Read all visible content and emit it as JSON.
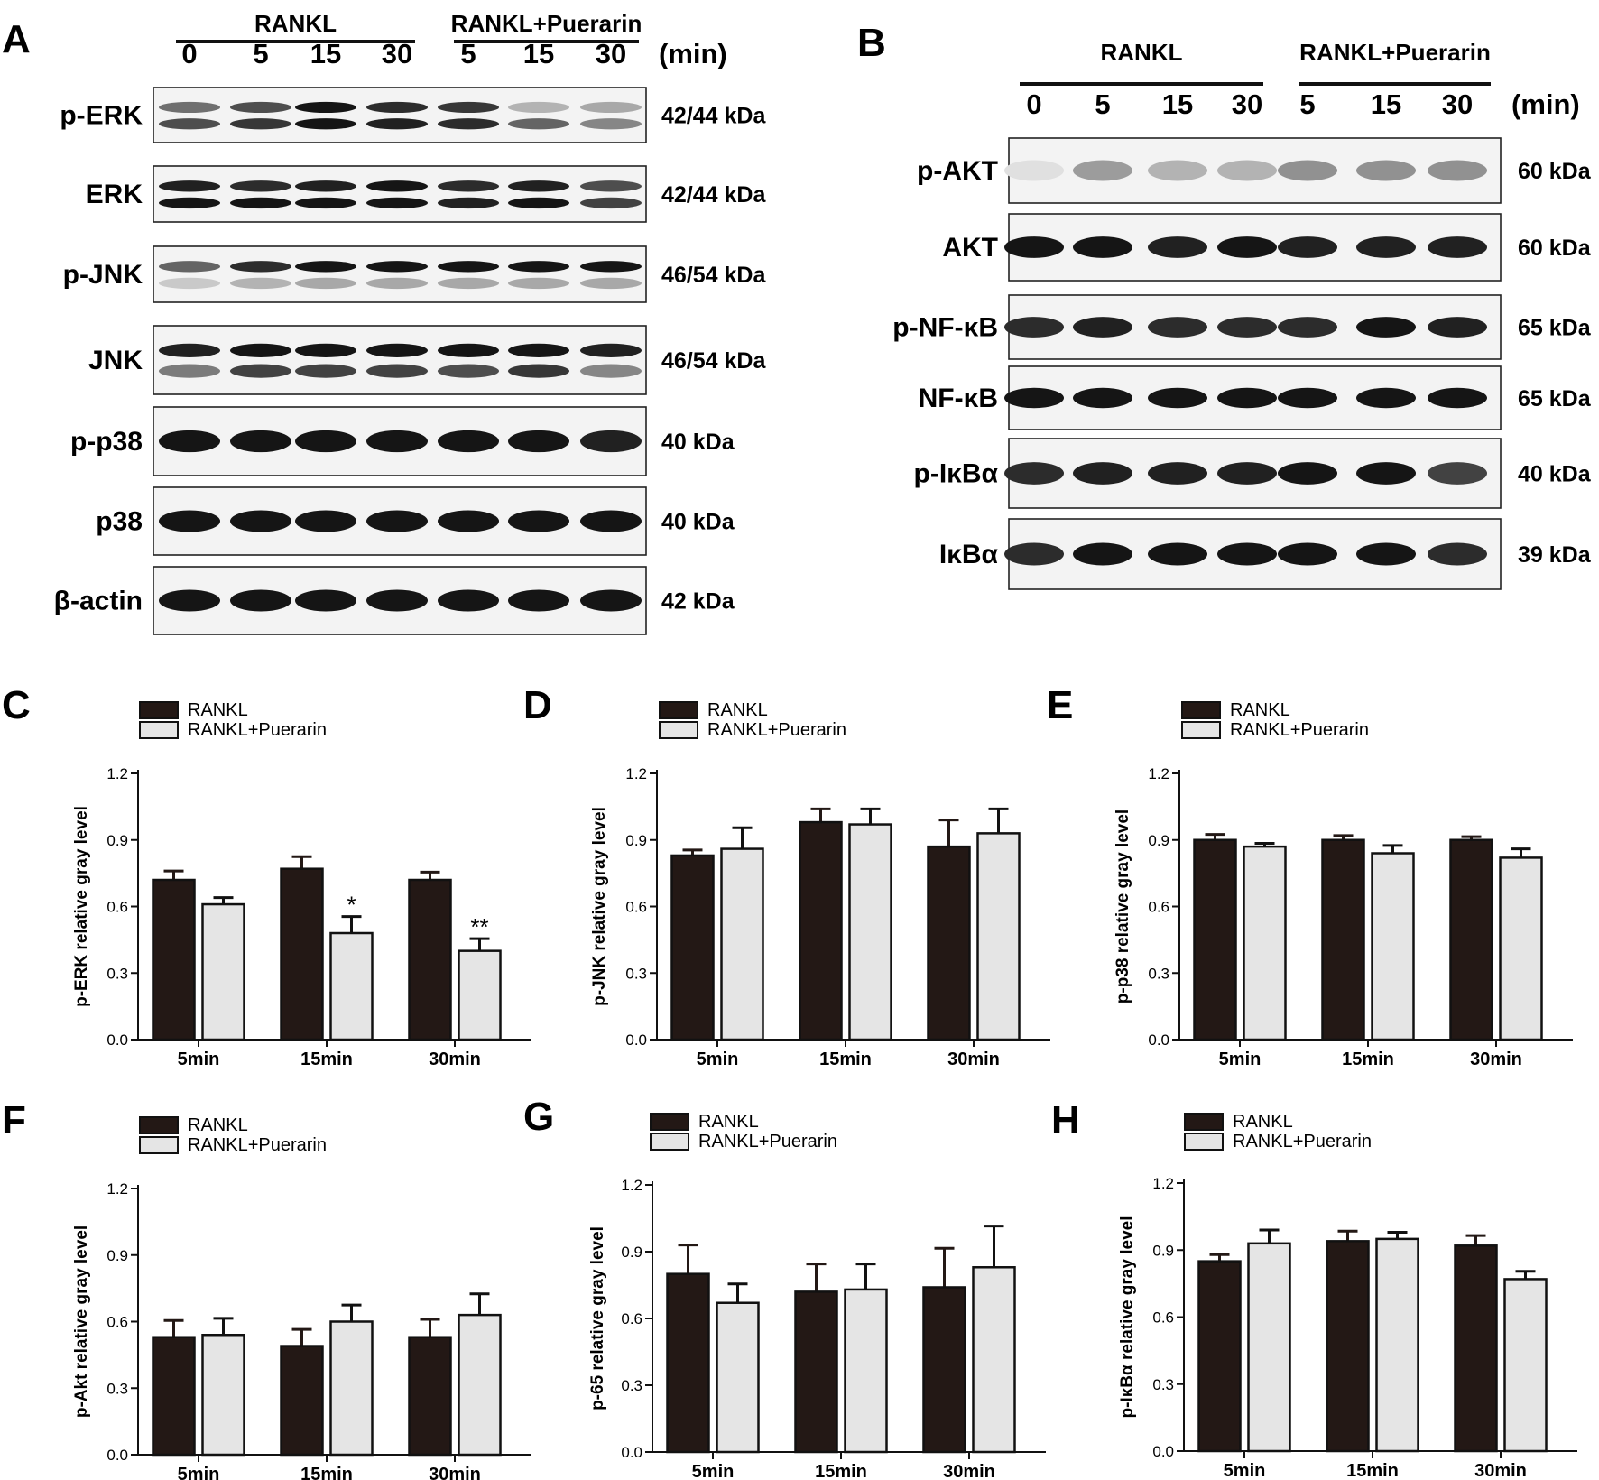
{
  "blots": [
    {
      "label": "A",
      "group_labels": [
        "RANKL",
        "RANKL+Puerarin"
      ],
      "timepoints": [
        "0",
        "5",
        "15",
        "30",
        "5",
        "15",
        "30"
      ],
      "unit": "(min)",
      "rows": [
        {
          "name": "p-ERK",
          "kda": "42/44 kDa",
          "bands": [
            [
              0.55,
              0.7,
              0.95,
              0.85,
              0.8,
              0.25,
              0.3
            ],
            [
              0.7,
              0.8,
              0.95,
              0.9,
              0.85,
              0.6,
              0.45
            ]
          ]
        },
        {
          "name": "ERK",
          "kda": "42/44 kDa",
          "bands": [
            [
              0.9,
              0.85,
              0.9,
              0.95,
              0.85,
              0.9,
              0.7
            ],
            [
              0.95,
              0.95,
              0.95,
              0.95,
              0.9,
              0.95,
              0.75
            ]
          ]
        },
        {
          "name": "p-JNK",
          "kda": "46/54 kDa",
          "bands": [
            [
              0.6,
              0.85,
              0.95,
              0.95,
              0.95,
              0.95,
              0.95
            ],
            [
              0.15,
              0.25,
              0.3,
              0.3,
              0.3,
              0.3,
              0.3
            ]
          ]
        },
        {
          "name": "JNK",
          "kda": "46/54 kDa",
          "bands": [
            [
              0.9,
              0.95,
              0.95,
              0.95,
              0.95,
              0.95,
              0.9
            ],
            [
              0.5,
              0.75,
              0.75,
              0.75,
              0.7,
              0.8,
              0.45
            ]
          ]
        },
        {
          "name": "p-p38",
          "kda": "40 kDa",
          "bands": [
            [
              0.95,
              0.95,
              0.95,
              0.95,
              0.95,
              0.95,
              0.9
            ]
          ]
        },
        {
          "name": "p38",
          "kda": "40 kDa",
          "bands": [
            [
              0.95,
              0.95,
              0.95,
              0.95,
              0.95,
              0.95,
              0.95
            ]
          ]
        },
        {
          "name": "β-actin",
          "kda": "42 kDa",
          "bands": [
            [
              0.95,
              0.95,
              0.95,
              0.95,
              0.95,
              0.95,
              0.95
            ]
          ]
        }
      ]
    },
    {
      "label": "B",
      "group_labels": [
        "RANKL",
        "RANKL+Puerarin"
      ],
      "timepoints": [
        "0",
        "5",
        "15",
        "30",
        "5",
        "15",
        "30"
      ],
      "unit": "(min)",
      "rows": [
        {
          "name": "p-AKT",
          "kda": "60 kDa",
          "bands": [
            [
              0.05,
              0.35,
              0.25,
              0.25,
              0.4,
              0.4,
              0.4
            ]
          ]
        },
        {
          "name": "AKT",
          "kda": "60 kDa",
          "bands": [
            [
              0.95,
              0.95,
              0.9,
              0.95,
              0.9,
              0.9,
              0.9
            ]
          ]
        },
        {
          "name": "p-NF-κB",
          "kda": "65 kDa",
          "bands": [
            [
              0.85,
              0.9,
              0.85,
              0.85,
              0.85,
              0.95,
              0.9
            ]
          ]
        },
        {
          "name": "NF-κB",
          "kda": "65 kDa",
          "bands": [
            [
              0.95,
              0.95,
              0.95,
              0.95,
              0.95,
              0.95,
              0.95
            ]
          ]
        },
        {
          "name": "p-IκBα",
          "kda": "40 kDa",
          "bands": [
            [
              0.85,
              0.9,
              0.9,
              0.9,
              0.95,
              0.95,
              0.75
            ]
          ]
        },
        {
          "name": "IκBα",
          "kda": "39 kDa",
          "bands": [
            [
              0.85,
              0.95,
              0.95,
              0.95,
              0.95,
              0.95,
              0.85
            ]
          ]
        }
      ]
    }
  ],
  "chart_data": [
    {
      "panel": "C",
      "type": "bar",
      "ylabel": "p-ERK relative gray level",
      "categories": [
        "5min",
        "15min",
        "30min"
      ],
      "yticks": [
        "0.0",
        "0.3",
        "0.6",
        "0.9",
        "1.2"
      ],
      "ylim": [
        0,
        1.2
      ],
      "series": [
        {
          "name": "RANKL",
          "color": "#231815",
          "values": [
            0.72,
            0.77,
            0.72
          ],
          "errors": [
            0.04,
            0.055,
            0.035
          ],
          "sig": [
            "",
            "",
            ""
          ]
        },
        {
          "name": "RANKL+Puerarin",
          "color": "#e5e5e5",
          "values": [
            0.61,
            0.48,
            0.4
          ],
          "errors": [
            0.03,
            0.075,
            0.055
          ],
          "sig": [
            "",
            "*",
            "**"
          ]
        }
      ]
    },
    {
      "panel": "D",
      "type": "bar",
      "ylabel": "p-JNK relative gray level",
      "categories": [
        "5min",
        "15min",
        "30min"
      ],
      "yticks": [
        "0.0",
        "0.3",
        "0.6",
        "0.9",
        "1.2"
      ],
      "ylim": [
        0,
        1.2
      ],
      "series": [
        {
          "name": "RANKL",
          "color": "#231815",
          "values": [
            0.83,
            0.98,
            0.87
          ],
          "errors": [
            0.025,
            0.06,
            0.12
          ],
          "sig": [
            "",
            "",
            ""
          ]
        },
        {
          "name": "RANKL+Puerarin",
          "color": "#e5e5e5",
          "values": [
            0.86,
            0.97,
            0.93
          ],
          "errors": [
            0.095,
            0.07,
            0.11
          ],
          "sig": [
            "",
            "",
            ""
          ]
        }
      ]
    },
    {
      "panel": "E",
      "type": "bar",
      "ylabel": "p-p38 relative gray level",
      "categories": [
        "5min",
        "15min",
        "30min"
      ],
      "yticks": [
        "0.0",
        "0.3",
        "0.6",
        "0.9",
        "1.2"
      ],
      "ylim": [
        0,
        1.2
      ],
      "series": [
        {
          "name": "RANKL",
          "color": "#231815",
          "values": [
            0.9,
            0.9,
            0.9
          ],
          "errors": [
            0.025,
            0.02,
            0.015
          ],
          "sig": [
            "",
            "",
            ""
          ]
        },
        {
          "name": "RANKL+Puerarin",
          "color": "#e5e5e5",
          "values": [
            0.87,
            0.84,
            0.82
          ],
          "errors": [
            0.015,
            0.035,
            0.04
          ],
          "sig": [
            "",
            "",
            ""
          ]
        }
      ]
    },
    {
      "panel": "F",
      "type": "bar",
      "ylabel": "p-Akt relative gray level",
      "categories": [
        "5min",
        "15min",
        "30min"
      ],
      "yticks": [
        "0.0",
        "0.3",
        "0.6",
        "0.9",
        "1.2"
      ],
      "ylim": [
        0,
        1.2
      ],
      "series": [
        {
          "name": "RANKL",
          "color": "#231815",
          "values": [
            0.53,
            0.49,
            0.53
          ],
          "errors": [
            0.075,
            0.075,
            0.08
          ],
          "sig": [
            "",
            "",
            ""
          ]
        },
        {
          "name": "RANKL+Puerarin",
          "color": "#e5e5e5",
          "values": [
            0.54,
            0.6,
            0.63
          ],
          "errors": [
            0.075,
            0.075,
            0.095
          ],
          "sig": [
            "",
            "",
            ""
          ]
        }
      ]
    },
    {
      "panel": "G",
      "type": "bar",
      "ylabel": "p-65 relative gray level",
      "categories": [
        "5min",
        "15min",
        "30min"
      ],
      "yticks": [
        "0.0",
        "0.3",
        "0.6",
        "0.9",
        "1.2"
      ],
      "ylim": [
        0,
        1.2
      ],
      "series": [
        {
          "name": "RANKL",
          "color": "#231815",
          "values": [
            0.8,
            0.72,
            0.74
          ],
          "errors": [
            0.13,
            0.125,
            0.175
          ],
          "sig": [
            "",
            "",
            ""
          ]
        },
        {
          "name": "RANKL+Puerarin",
          "color": "#e5e5e5",
          "values": [
            0.67,
            0.73,
            0.83
          ],
          "errors": [
            0.085,
            0.115,
            0.185
          ],
          "sig": [
            "",
            "",
            ""
          ]
        }
      ]
    },
    {
      "panel": "H",
      "type": "bar",
      "ylabel": "p-IκBα  relative gray level",
      "categories": [
        "5min",
        "15min",
        "30min"
      ],
      "yticks": [
        "0.0",
        "0.3",
        "0.6",
        "0.9",
        "1.2"
      ],
      "ylim": [
        0,
        1.2
      ],
      "series": [
        {
          "name": "RANKL",
          "color": "#231815",
          "values": [
            0.85,
            0.94,
            0.92
          ],
          "errors": [
            0.03,
            0.045,
            0.045
          ],
          "sig": [
            "",
            "",
            ""
          ]
        },
        {
          "name": "RANKL+Puerarin",
          "color": "#e5e5e5",
          "values": [
            0.93,
            0.95,
            0.77
          ],
          "errors": [
            0.06,
            0.03,
            0.035
          ],
          "sig": [
            "",
            "",
            ""
          ]
        }
      ]
    }
  ]
}
